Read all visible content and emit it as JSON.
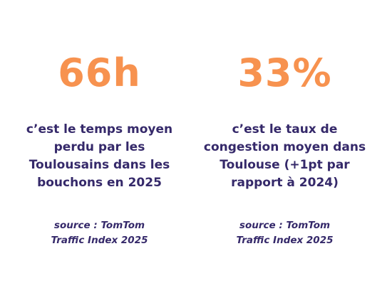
{
  "colors": {
    "accent": "#f7924f",
    "text": "#35296a",
    "background": "#ffffff"
  },
  "stats": [
    {
      "value": "66h",
      "description_lines": [
        "c’est le temps moyen",
        "perdu par les",
        "Toulousains dans les",
        "bouchons en 2025"
      ],
      "source_lines": [
        "source : TomTom",
        "Traffic Index 2025"
      ]
    },
    {
      "value": "33%",
      "description_lines": [
        "c’est le taux de",
        "congestion moyen dans",
        "Toulouse (+1pt par",
        "rapport à 2024)"
      ],
      "source_lines": [
        "source : TomTom",
        "Traffic Index 2025"
      ]
    }
  ]
}
